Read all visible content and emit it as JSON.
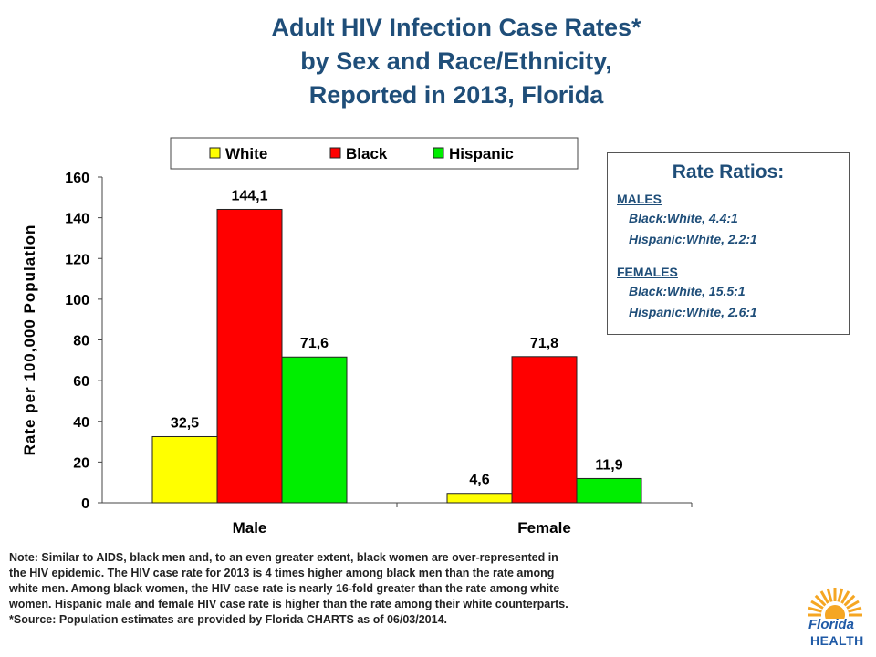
{
  "title_lines": [
    "Adult HIV Infection Case Rates*",
    "by Sex and Race/Ethnicity,",
    "Reported in 2013, Florida"
  ],
  "chart_data": {
    "type": "bar",
    "categories": [
      "Male",
      "Female"
    ],
    "series": [
      {
        "name": "White",
        "color": "#ffff00",
        "values": [
          32.5,
          4.6
        ],
        "labels": [
          "32,5",
          "4,6"
        ]
      },
      {
        "name": "Black",
        "color": "#ff0000",
        "values": [
          144.1,
          71.8
        ],
        "labels": [
          "144,1",
          "71,8"
        ]
      },
      {
        "name": "Hispanic",
        "color": "#00ee00",
        "values": [
          71.6,
          11.9
        ],
        "labels": [
          "71,6",
          "11,9"
        ]
      }
    ],
    "ylabel": "Rate per 100,000 Population",
    "ylim": [
      0,
      160
    ],
    "yticks": [
      0,
      20,
      40,
      60,
      80,
      100,
      120,
      140,
      160
    ],
    "legend_position": "top",
    "grid": false
  },
  "rate_ratios": {
    "title": "Rate Ratios:",
    "groups": [
      {
        "heading": "MALES",
        "lines": [
          "Black:White, 4.4:1",
          "Hispanic:White, 2.2:1"
        ]
      },
      {
        "heading": "FEMALES",
        "lines": [
          "Black:White, 15.5:1",
          "Hispanic:White, 2.6:1"
        ]
      }
    ]
  },
  "note_lines": [
    "Note: Similar to AIDS, black men and, to an even greater extent, black women are over-represented in",
    "the HIV epidemic. The HIV case rate for 2013 is 4 times higher among black men than the rate among",
    "white men.  Among black women, the HIV case rate is nearly 16-fold greater than the rate among white",
    "women.  Hispanic male and female HIV case rate is higher than the rate among their white counterparts.",
    "*Source: Population estimates are provided by Florida CHARTS as of 06/03/2014."
  ],
  "logo": {
    "word1": "Florida",
    "word2": "HEALTH",
    "sun_color": "#f5a623",
    "text_color": "#1f5aa6"
  }
}
